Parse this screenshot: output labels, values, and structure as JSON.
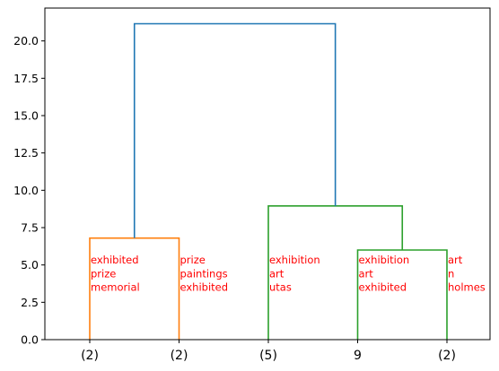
{
  "chart_data": {
    "type": "dendrogram",
    "title": "",
    "xlabel": "",
    "ylabel": "",
    "ylim": [
      0,
      22.2
    ],
    "yticks": [
      0.0,
      2.5,
      5.0,
      7.5,
      10.0,
      12.5,
      15.0,
      17.5,
      20.0
    ],
    "ytick_labels": [
      "0.0",
      "2.5",
      "5.0",
      "7.5",
      "10.0",
      "12.5",
      "15.0",
      "17.5",
      "20.0"
    ],
    "grid": false,
    "leaves": [
      {
        "label": "(2)",
        "annotation": [
          "exhibited",
          "prize",
          "memorial"
        ]
      },
      {
        "label": "(2)",
        "annotation": [
          "prize",
          "paintings",
          "exhibited"
        ]
      },
      {
        "label": "(5)",
        "annotation": [
          "exhibition",
          "art",
          "utas"
        ]
      },
      {
        "label": "9",
        "annotation": [
          "exhibition",
          "art",
          "exhibited"
        ]
      },
      {
        "label": "(2)",
        "annotation": [
          "art",
          "n",
          "holmes"
        ]
      }
    ],
    "links": [
      {
        "left": 0.0,
        "right": 1.0,
        "height": 6.8,
        "left_height": 0.0,
        "right_height": 0.0,
        "color": "#ff7f0e"
      },
      {
        "left": 3.0,
        "right": 4.0,
        "height": 6.0,
        "left_height": 0.0,
        "right_height": 0.0,
        "color": "#2ca02c"
      },
      {
        "left": 2.0,
        "right": 3.5,
        "height": 8.95,
        "left_height": 0.0,
        "right_height": 6.0,
        "color": "#2ca02c"
      },
      {
        "left": 0.5,
        "right": 2.75,
        "height": 21.15,
        "left_height": 6.8,
        "right_height": 8.95,
        "color": "#1f77b4"
      }
    ]
  }
}
